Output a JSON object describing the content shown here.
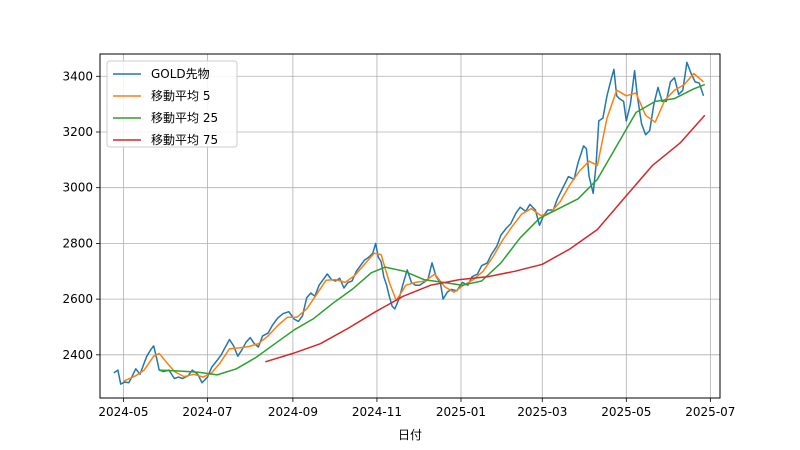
{
  "chart_data": {
    "type": "line",
    "xlabel": "日付",
    "ylabel": "",
    "grid": true,
    "legend_position": "top-left",
    "ylim": [
      2245,
      3480
    ],
    "xlim": [
      "2024-04-14",
      "2025-07-08"
    ],
    "x_ticks": [
      "2024-05",
      "2024-07",
      "2024-09",
      "2024-11",
      "2025-01",
      "2025-03",
      "2025-05",
      "2025-07"
    ],
    "x_tick_dates": [
      "2024-05-01",
      "2024-07-01",
      "2024-09-01",
      "2024-11-01",
      "2025-01-01",
      "2025-03-01",
      "2025-05-01",
      "2025-07-01"
    ],
    "y_ticks": [
      2400,
      2600,
      2800,
      3000,
      3200,
      3400
    ],
    "series": [
      {
        "name": "GOLD先物",
        "color": "#1f77b4",
        "points": [
          [
            "2024-04-24",
            2335
          ],
          [
            "2024-04-27",
            2345
          ],
          [
            "2024-04-29",
            2295
          ],
          [
            "2024-05-02",
            2302
          ],
          [
            "2024-05-05",
            2300
          ],
          [
            "2024-05-07",
            2320
          ],
          [
            "2024-05-10",
            2350
          ],
          [
            "2024-05-13",
            2330
          ],
          [
            "2024-05-16",
            2370
          ],
          [
            "2024-05-18",
            2395
          ],
          [
            "2024-05-21",
            2420
          ],
          [
            "2024-05-23",
            2432
          ],
          [
            "2024-05-25",
            2390
          ],
          [
            "2024-05-27",
            2345
          ],
          [
            "2024-05-30",
            2340
          ],
          [
            "2024-06-03",
            2345
          ],
          [
            "2024-06-07",
            2315
          ],
          [
            "2024-06-10",
            2320
          ],
          [
            "2024-06-13",
            2315
          ],
          [
            "2024-06-17",
            2325
          ],
          [
            "2024-06-20",
            2345
          ],
          [
            "2024-06-24",
            2330
          ],
          [
            "2024-06-27",
            2300
          ],
          [
            "2024-07-01",
            2320
          ],
          [
            "2024-07-04",
            2355
          ],
          [
            "2024-07-08",
            2380
          ],
          [
            "2024-07-11",
            2400
          ],
          [
            "2024-07-14",
            2428
          ],
          [
            "2024-07-17",
            2455
          ],
          [
            "2024-07-20",
            2432
          ],
          [
            "2024-07-23",
            2395
          ],
          [
            "2024-07-26",
            2418
          ],
          [
            "2024-07-29",
            2445
          ],
          [
            "2024-08-01",
            2462
          ],
          [
            "2024-08-04",
            2440
          ],
          [
            "2024-08-07",
            2428
          ],
          [
            "2024-08-10",
            2468
          ],
          [
            "2024-08-14",
            2478
          ],
          [
            "2024-08-17",
            2505
          ],
          [
            "2024-08-21",
            2532
          ],
          [
            "2024-08-25",
            2548
          ],
          [
            "2024-08-29",
            2555
          ],
          [
            "2024-09-02",
            2528
          ],
          [
            "2024-09-05",
            2520
          ],
          [
            "2024-09-08",
            2540
          ],
          [
            "2024-09-11",
            2605
          ],
          [
            "2024-09-14",
            2622
          ],
          [
            "2024-09-17",
            2610
          ],
          [
            "2024-09-20",
            2650
          ],
          [
            "2024-09-23",
            2670
          ],
          [
            "2024-09-26",
            2690
          ],
          [
            "2024-09-29",
            2670
          ],
          [
            "2024-10-02",
            2665
          ],
          [
            "2024-10-05",
            2675
          ],
          [
            "2024-10-08",
            2640
          ],
          [
            "2024-10-11",
            2660
          ],
          [
            "2024-10-14",
            2665
          ],
          [
            "2024-10-17",
            2700
          ],
          [
            "2024-10-20",
            2720
          ],
          [
            "2024-10-23",
            2740
          ],
          [
            "2024-10-26",
            2750
          ],
          [
            "2024-10-29",
            2765
          ],
          [
            "2024-10-31",
            2800
          ],
          [
            "2024-11-02",
            2750
          ],
          [
            "2024-11-04",
            2735
          ],
          [
            "2024-11-06",
            2680
          ],
          [
            "2024-11-08",
            2650
          ],
          [
            "2024-11-10",
            2610
          ],
          [
            "2024-11-12",
            2575
          ],
          [
            "2024-11-14",
            2565
          ],
          [
            "2024-11-17",
            2600
          ],
          [
            "2024-11-20",
            2655
          ],
          [
            "2024-11-23",
            2705
          ],
          [
            "2024-11-26",
            2660
          ],
          [
            "2024-11-29",
            2650
          ],
          [
            "2024-12-02",
            2650
          ],
          [
            "2024-12-05",
            2660
          ],
          [
            "2024-12-08",
            2670
          ],
          [
            "2024-12-11",
            2730
          ],
          [
            "2024-12-14",
            2680
          ],
          [
            "2024-12-17",
            2660
          ],
          [
            "2024-12-19",
            2600
          ],
          [
            "2024-12-22",
            2625
          ],
          [
            "2024-12-25",
            2635
          ],
          [
            "2024-12-29",
            2630
          ],
          [
            "2025-01-02",
            2660
          ],
          [
            "2025-01-06",
            2650
          ],
          [
            "2025-01-09",
            2680
          ],
          [
            "2025-01-13",
            2690
          ],
          [
            "2025-01-16",
            2720
          ],
          [
            "2025-01-20",
            2730
          ],
          [
            "2025-01-23",
            2760
          ],
          [
            "2025-01-27",
            2790
          ],
          [
            "2025-01-30",
            2830
          ],
          [
            "2025-02-03",
            2855
          ],
          [
            "2025-02-06",
            2870
          ],
          [
            "2025-02-10",
            2910
          ],
          [
            "2025-02-13",
            2930
          ],
          [
            "2025-02-17",
            2915
          ],
          [
            "2025-02-20",
            2940
          ],
          [
            "2025-02-24",
            2920
          ],
          [
            "2025-02-27",
            2865
          ],
          [
            "2025-03-02",
            2900
          ],
          [
            "2025-03-05",
            2920
          ],
          [
            "2025-03-09",
            2920
          ],
          [
            "2025-03-12",
            2960
          ],
          [
            "2025-03-16",
            3000
          ],
          [
            "2025-03-20",
            3040
          ],
          [
            "2025-03-24",
            3030
          ],
          [
            "2025-03-27",
            3090
          ],
          [
            "2025-03-31",
            3150
          ],
          [
            "2025-04-02",
            3140
          ],
          [
            "2025-04-04",
            3040
          ],
          [
            "2025-04-07",
            2980
          ],
          [
            "2025-04-09",
            3080
          ],
          [
            "2025-04-11",
            3240
          ],
          [
            "2025-04-14",
            3250
          ],
          [
            "2025-04-17",
            3330
          ],
          [
            "2025-04-20",
            3390
          ],
          [
            "2025-04-22",
            3425
          ],
          [
            "2025-04-24",
            3330
          ],
          [
            "2025-04-26",
            3320
          ],
          [
            "2025-04-29",
            3310
          ],
          [
            "2025-05-01",
            3240
          ],
          [
            "2025-05-04",
            3300
          ],
          [
            "2025-05-07",
            3420
          ],
          [
            "2025-05-09",
            3330
          ],
          [
            "2025-05-12",
            3230
          ],
          [
            "2025-05-15",
            3190
          ],
          [
            "2025-05-18",
            3205
          ],
          [
            "2025-05-21",
            3300
          ],
          [
            "2025-05-24",
            3360
          ],
          [
            "2025-05-27",
            3310
          ],
          [
            "2025-05-30",
            3310
          ],
          [
            "2025-06-02",
            3380
          ],
          [
            "2025-06-05",
            3395
          ],
          [
            "2025-06-08",
            3335
          ],
          [
            "2025-06-11",
            3350
          ],
          [
            "2025-06-14",
            3450
          ],
          [
            "2025-06-17",
            3410
          ],
          [
            "2025-06-20",
            3380
          ],
          [
            "2025-06-23",
            3375
          ],
          [
            "2025-06-26",
            3330
          ]
        ]
      },
      {
        "name": "移動平均 5",
        "color": "#ff7f0e",
        "points": [
          [
            "2024-05-01",
            2305
          ],
          [
            "2024-05-10",
            2325
          ],
          [
            "2024-05-16",
            2345
          ],
          [
            "2024-05-23",
            2395
          ],
          [
            "2024-05-27",
            2405
          ],
          [
            "2024-06-01",
            2375
          ],
          [
            "2024-06-07",
            2340
          ],
          [
            "2024-06-14",
            2322
          ],
          [
            "2024-06-21",
            2330
          ],
          [
            "2024-06-28",
            2320
          ],
          [
            "2024-07-04",
            2335
          ],
          [
            "2024-07-10",
            2370
          ],
          [
            "2024-07-17",
            2422
          ],
          [
            "2024-07-24",
            2425
          ],
          [
            "2024-07-31",
            2430
          ],
          [
            "2024-08-07",
            2440
          ],
          [
            "2024-08-14",
            2468
          ],
          [
            "2024-08-21",
            2505
          ],
          [
            "2024-08-28",
            2535
          ],
          [
            "2024-09-04",
            2535
          ],
          [
            "2024-09-11",
            2565
          ],
          [
            "2024-09-18",
            2615
          ],
          [
            "2024-09-25",
            2668
          ],
          [
            "2024-10-02",
            2670
          ],
          [
            "2024-10-09",
            2660
          ],
          [
            "2024-10-16",
            2685
          ],
          [
            "2024-10-23",
            2725
          ],
          [
            "2024-10-30",
            2765
          ],
          [
            "2024-11-04",
            2760
          ],
          [
            "2024-11-10",
            2660
          ],
          [
            "2024-11-15",
            2595
          ],
          [
            "2024-11-22",
            2650
          ],
          [
            "2024-11-29",
            2660
          ],
          [
            "2024-12-06",
            2665
          ],
          [
            "2024-12-13",
            2690
          ],
          [
            "2024-12-20",
            2645
          ],
          [
            "2024-12-27",
            2625
          ],
          [
            "2025-01-03",
            2650
          ],
          [
            "2025-01-10",
            2670
          ],
          [
            "2025-01-17",
            2700
          ],
          [
            "2025-01-24",
            2750
          ],
          [
            "2025-01-31",
            2810
          ],
          [
            "2025-02-07",
            2860
          ],
          [
            "2025-02-14",
            2905
          ],
          [
            "2025-02-21",
            2925
          ],
          [
            "2025-02-28",
            2900
          ],
          [
            "2025-03-07",
            2910
          ],
          [
            "2025-03-14",
            2950
          ],
          [
            "2025-03-21",
            3010
          ],
          [
            "2025-03-28",
            3060
          ],
          [
            "2025-04-04",
            3095
          ],
          [
            "2025-04-10",
            3080
          ],
          [
            "2025-04-17",
            3250
          ],
          [
            "2025-04-24",
            3350
          ],
          [
            "2025-05-01",
            3330
          ],
          [
            "2025-05-08",
            3340
          ],
          [
            "2025-05-15",
            3260
          ],
          [
            "2025-05-22",
            3235
          ],
          [
            "2025-05-29",
            3315
          ],
          [
            "2025-06-05",
            3350
          ],
          [
            "2025-06-12",
            3370
          ],
          [
            "2025-06-19",
            3410
          ],
          [
            "2025-06-26",
            3380
          ]
        ]
      },
      {
        "name": "移動平均 25",
        "color": "#2ca02c",
        "points": [
          [
            "2024-05-27",
            2345
          ],
          [
            "2024-06-10",
            2342
          ],
          [
            "2024-06-24",
            2338
          ],
          [
            "2024-07-08",
            2328
          ],
          [
            "2024-07-22",
            2350
          ],
          [
            "2024-08-05",
            2390
          ],
          [
            "2024-08-19",
            2440
          ],
          [
            "2024-09-02",
            2490
          ],
          [
            "2024-09-16",
            2530
          ],
          [
            "2024-09-30",
            2585
          ],
          [
            "2024-10-14",
            2635
          ],
          [
            "2024-10-28",
            2695
          ],
          [
            "2024-11-07",
            2715
          ],
          [
            "2024-11-21",
            2700
          ],
          [
            "2024-12-05",
            2670
          ],
          [
            "2024-12-19",
            2660
          ],
          [
            "2025-01-02",
            2650
          ],
          [
            "2025-01-16",
            2665
          ],
          [
            "2025-01-30",
            2730
          ],
          [
            "2025-02-13",
            2820
          ],
          [
            "2025-02-27",
            2890
          ],
          [
            "2025-03-13",
            2925
          ],
          [
            "2025-03-27",
            2960
          ],
          [
            "2025-04-10",
            3030
          ],
          [
            "2025-04-24",
            3150
          ],
          [
            "2025-05-08",
            3270
          ],
          [
            "2025-05-22",
            3310
          ],
          [
            "2025-06-05",
            3320
          ],
          [
            "2025-06-19",
            3355
          ],
          [
            "2025-06-27",
            3370
          ]
        ]
      },
      {
        "name": "移動平均 75",
        "color": "#d62728",
        "points": [
          [
            "2024-08-12",
            2375
          ],
          [
            "2024-09-01",
            2405
          ],
          [
            "2024-09-21",
            2440
          ],
          [
            "2024-10-11",
            2495
          ],
          [
            "2024-10-31",
            2555
          ],
          [
            "2024-11-20",
            2610
          ],
          [
            "2024-12-10",
            2650
          ],
          [
            "2024-12-31",
            2670
          ],
          [
            "2025-01-20",
            2680
          ],
          [
            "2025-02-09",
            2700
          ],
          [
            "2025-03-01",
            2725
          ],
          [
            "2025-03-21",
            2780
          ],
          [
            "2025-04-10",
            2850
          ],
          [
            "2025-04-30",
            2965
          ],
          [
            "2025-05-20",
            3080
          ],
          [
            "2025-06-09",
            3160
          ],
          [
            "2025-06-27",
            3260
          ]
        ]
      }
    ]
  }
}
